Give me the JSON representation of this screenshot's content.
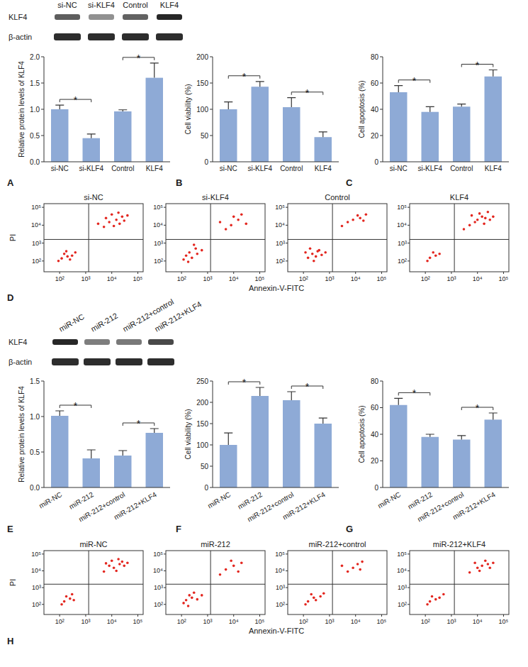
{
  "chart_data": [
    {
      "type": "bar",
      "label": "A",
      "y_label": "Relative protein levels of KLF4",
      "categories": [
        "si-NC",
        "si-KLF4",
        "Control",
        "KLF4"
      ],
      "values": [
        1.0,
        0.45,
        0.96,
        1.6
      ],
      "errors": [
        0.08,
        0.08,
        0.03,
        0.28
      ],
      "color": "#8eaad6",
      "ylim": [
        0,
        2
      ],
      "yticks": [
        {
          "value": 0,
          "label": "0.0"
        },
        0.5,
        {
          "value": 1,
          "label": "1.0"
        },
        1.5,
        {
          "value": 2,
          "label": "2.0"
        }
      ],
      "significance": [
        {
          "pair": [
            "si-NC",
            "si-KLF4"
          ],
          "label": "*"
        },
        {
          "pair": [
            "Control",
            "KLF4"
          ],
          "label": "*"
        }
      ],
      "blot": {
        "rows": [
          "KLF4",
          "β-actin"
        ]
      }
    },
    {
      "type": "bar",
      "label": "B",
      "y_label": "Cell viability (%)",
      "categories": [
        "si-NC",
        "si-KLF4",
        "Control",
        "KLF4"
      ],
      "values": [
        100,
        143,
        104,
        47
      ],
      "errors": [
        14,
        10,
        18,
        10
      ],
      "color": "#8eaad6",
      "ylim": [
        0,
        200
      ],
      "yticks": [
        0,
        50,
        100,
        150,
        200
      ],
      "significance": [
        {
          "pair": [
            "si-NC",
            "si-KLF4"
          ],
          "label": "*"
        },
        {
          "pair": [
            "Control",
            "KLF4"
          ],
          "label": "*"
        }
      ]
    },
    {
      "type": "bar",
      "label": "C",
      "y_label": "Cell apoptosis (%)",
      "categories": [
        "si-NC",
        "si-KLF4",
        "Control",
        "KLF4"
      ],
      "values": [
        53,
        38,
        42,
        65
      ],
      "errors": [
        5,
        4,
        2,
        5
      ],
      "color": "#8eaad6",
      "ylim": [
        0,
        80
      ],
      "yticks": [
        0,
        20,
        40,
        60,
        80
      ],
      "significance": [
        {
          "pair": [
            "si-NC",
            "si-KLF4"
          ],
          "label": "*"
        },
        {
          "pair": [
            "Control",
            "KLF4"
          ],
          "label": "*"
        }
      ]
    },
    {
      "type": "scatter",
      "label": "D",
      "log": true,
      "x_label": "Annexin-V-FITC",
      "y_label": "PI",
      "color": "#e3261f",
      "marker": "dot",
      "xlim": [
        25,
        160000
      ],
      "ylim": [
        25,
        160000
      ],
      "xticks": [
        {
          "value": 100,
          "label": "10²"
        },
        {
          "value": 1000,
          "label": "10³"
        },
        {
          "value": 10000,
          "label": "10⁴"
        },
        {
          "value": 100000,
          "label": "10⁵"
        }
      ],
      "yticks": [
        {
          "value": 100,
          "label": "10²"
        },
        {
          "value": 1000,
          "label": "10³"
        },
        {
          "value": 10000,
          "label": "10⁴"
        },
        {
          "value": 100000,
          "label": "10⁵"
        }
      ],
      "gate_x": 1300,
      "gate_y": 1600,
      "panels": [
        {
          "title": "si-NC",
          "x": [
            120,
            200,
            150,
            300,
            250,
            180,
            400,
            90,
            8000,
            15000,
            12000,
            25000,
            6000,
            20000,
            30000,
            10000,
            40000,
            5000,
            18000,
            3000
          ],
          "values": [
            140,
            180,
            250,
            200,
            120,
            350,
            300,
            100,
            15000,
            20000,
            9000,
            30000,
            25000,
            12000,
            18000,
            40000,
            35000,
            8000,
            50000,
            12000
          ]
        },
        {
          "title": "si-KLF4",
          "x": [
            150,
            250,
            200,
            400,
            120,
            350,
            600,
            300,
            180,
            8000,
            15000,
            5000,
            20000,
            3000,
            30000,
            10000
          ],
          "values": [
            200,
            150,
            300,
            250,
            120,
            500,
            400,
            800,
            90,
            10000,
            20000,
            6000,
            40000,
            15000,
            12000,
            30000
          ]
        },
        {
          "title": "Control",
          "x": [
            150,
            220,
            300,
            120,
            400,
            250,
            500,
            180,
            350,
            700,
            8000,
            15000,
            5000,
            12000,
            20000,
            3000,
            25000
          ],
          "values": [
            150,
            250,
            180,
            300,
            400,
            100,
            220,
            500,
            350,
            300,
            20000,
            25000,
            15000,
            35000,
            18000,
            9000,
            40000
          ]
        },
        {
          "title": "KLF4",
          "x": [
            150,
            250,
            200,
            120,
            350,
            10000,
            15000,
            8000,
            20000,
            12000,
            30000,
            5000,
            25000,
            18000,
            40000,
            6000,
            3000
          ],
          "values": [
            150,
            200,
            300,
            100,
            250,
            20000,
            30000,
            15000,
            25000,
            45000,
            20000,
            10000,
            55000,
            12000,
            30000,
            35000,
            6000
          ]
        }
      ]
    },
    {
      "type": "bar",
      "label": "E",
      "y_label": "Relative protein levels of KLF4",
      "categories": [
        "miR-NC",
        "miR-212",
        "miR-212+control",
        "miR-212+KLF4"
      ],
      "values": [
        1.01,
        0.41,
        0.45,
        0.77
      ],
      "errors": [
        0.07,
        0.12,
        0.07,
        0.06
      ],
      "color": "#8eaad6",
      "ylim": [
        0,
        1.5
      ],
      "yticks": [
        {
          "value": 0,
          "label": "0.0"
        },
        0.5,
        {
          "value": 1,
          "label": "1.0"
        },
        1.5
      ],
      "significance": [
        {
          "pair": [
            "miR-NC",
            "miR-212"
          ],
          "label": "*"
        },
        {
          "pair": [
            "miR-212+control",
            "miR-212+KLF4"
          ],
          "label": "*"
        }
      ],
      "blot": {
        "rows": [
          "KLF4",
          "β-actin"
        ]
      }
    },
    {
      "type": "bar",
      "label": "F",
      "y_label": "Cell viability (%)",
      "categories": [
        "miR-NC",
        "miR-212",
        "miR-212+control",
        "miR-212+KLF4"
      ],
      "values": [
        100,
        215,
        205,
        150
      ],
      "errors": [
        28,
        20,
        20,
        13
      ],
      "color": "#8eaad6",
      "ylim": [
        0,
        250
      ],
      "yticks": [
        0,
        50,
        100,
        150,
        200,
        250
      ],
      "significance": [
        {
          "pair": [
            "miR-NC",
            "miR-212"
          ],
          "label": "*"
        },
        {
          "pair": [
            "miR-212+control",
            "miR-212+KLF4"
          ],
          "label": "*"
        }
      ]
    },
    {
      "type": "bar",
      "label": "G",
      "y_label": "Cell apoptosis (%)",
      "categories": [
        "miR-NC",
        "miR-212",
        "miR-212+control",
        "miR-212+KLF4"
      ],
      "values": [
        62,
        38,
        36,
        51
      ],
      "errors": [
        5,
        2,
        3,
        5
      ],
      "color": "#8eaad6",
      "ylim": [
        0,
        80
      ],
      "yticks": [
        0,
        20,
        40,
        60,
        80
      ],
      "significance": [
        {
          "pair": [
            "miR-NC",
            "miR-212"
          ],
          "label": "*"
        },
        {
          "pair": [
            "miR-212+control",
            "miR-212+KLF4"
          ],
          "label": "*"
        }
      ]
    },
    {
      "type": "scatter",
      "label": "H",
      "log": true,
      "x_label": "Annexin-V-FITC",
      "y_label": "PI",
      "color": "#e3261f",
      "marker": "dot",
      "xlim": [
        25,
        160000
      ],
      "ylim": [
        25,
        160000
      ],
      "xticks": [
        {
          "value": 100,
          "label": "10²"
        },
        {
          "value": 1000,
          "label": "10³"
        },
        {
          "value": 10000,
          "label": "10⁴"
        },
        {
          "value": 100000,
          "label": "10⁵"
        }
      ],
      "yticks": [
        {
          "value": 100,
          "label": "10²"
        },
        {
          "value": 1000,
          "label": "10³"
        },
        {
          "value": 10000,
          "label": "10⁴"
        },
        {
          "value": 100000,
          "label": "10⁵"
        }
      ],
      "gate_x": 1300,
      "gate_y": 1600,
      "panels": [
        {
          "title": "miR-NC",
          "x": [
            150,
            250,
            180,
            350,
            120,
            300,
            12000,
            20000,
            8000,
            15000,
            25000,
            30000,
            10000,
            40000,
            5000,
            18000,
            6000
          ],
          "values": [
            150,
            220,
            300,
            180,
            100,
            400,
            15000,
            25000,
            20000,
            10000,
            35000,
            20000,
            40000,
            30000,
            9000,
            50000,
            28000
          ]
        },
        {
          "title": "miR-212",
          "x": [
            150,
            250,
            200,
            400,
            120,
            300,
            600,
            180,
            10000,
            5000,
            20000,
            8000,
            15000,
            3000
          ],
          "values": [
            180,
            250,
            350,
            200,
            120,
            500,
            350,
            80,
            20000,
            12000,
            30000,
            40000,
            9000,
            6000
          ]
        },
        {
          "title": "miR-212+control",
          "x": [
            150,
            250,
            300,
            200,
            450,
            120,
            600,
            8000,
            12000,
            5000,
            18000,
            3000,
            15000
          ],
          "values": [
            150,
            250,
            180,
            400,
            300,
            100,
            450,
            15000,
            25000,
            9000,
            35000,
            20000,
            12000
          ]
        },
        {
          "title": "miR-212+KLF4",
          "x": [
            150,
            250,
            180,
            350,
            120,
            500,
            15000,
            25000,
            10000,
            20000,
            30000,
            8000,
            40000,
            5000,
            12000
          ],
          "values": [
            150,
            200,
            300,
            250,
            100,
            400,
            20000,
            25000,
            15000,
            40000,
            15000,
            30000,
            30000,
            8000,
            10000
          ]
        }
      ]
    }
  ]
}
